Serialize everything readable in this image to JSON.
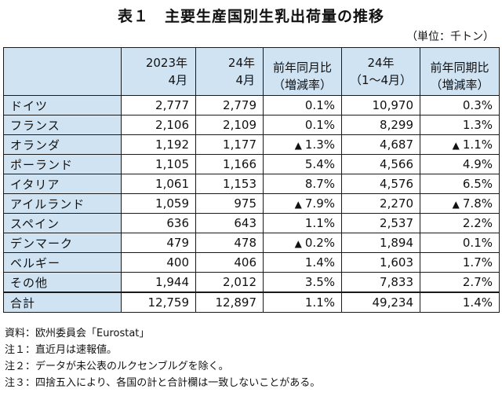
{
  "title": "表１　主要生産国別生乳出荷量の推移",
  "unit": "（単位：千トン）",
  "header": {
    "col1_line1": "2023年",
    "col1_line2": "4月",
    "col2_line1": "24年",
    "col2_line2": "4月",
    "col3_line1": "前年同月比",
    "col3_line2": "（増減率）",
    "col4_line1": "24年",
    "col4_line2": "（1～4月）",
    "col5_line1": "前年同期比",
    "col5_line2": "（増減率）"
  },
  "rows": [
    {
      "country": "ドイツ",
      "y2023": "2,777",
      "y2024": "2,779",
      "yoy_month": "0.1%",
      "yoy_month_neg": false,
      "jan_apr": "10,970",
      "yoy_period": "0.3%",
      "yoy_period_neg": false
    },
    {
      "country": "フランス",
      "y2023": "2,106",
      "y2024": "2,109",
      "yoy_month": "0.1%",
      "yoy_month_neg": false,
      "jan_apr": "8,299",
      "yoy_period": "1.3%",
      "yoy_period_neg": false
    },
    {
      "country": "オランダ",
      "y2023": "1,192",
      "y2024": "1,177",
      "yoy_month": "1.3%",
      "yoy_month_neg": true,
      "jan_apr": "4,687",
      "yoy_period": "1.1%",
      "yoy_period_neg": true
    },
    {
      "country": "ポーランド",
      "y2023": "1,105",
      "y2024": "1,166",
      "yoy_month": "5.4%",
      "yoy_month_neg": false,
      "jan_apr": "4,566",
      "yoy_period": "4.9%",
      "yoy_period_neg": false
    },
    {
      "country": "イタリア",
      "y2023": "1,061",
      "y2024": "1,153",
      "yoy_month": "8.7%",
      "yoy_month_neg": false,
      "jan_apr": "4,576",
      "yoy_period": "6.5%",
      "yoy_period_neg": false
    },
    {
      "country": "アイルランド",
      "y2023": "1,059",
      "y2024": "975",
      "yoy_month": "7.9%",
      "yoy_month_neg": true,
      "jan_apr": "2,270",
      "yoy_period": "7.8%",
      "yoy_period_neg": true
    },
    {
      "country": "スペイン",
      "y2023": "636",
      "y2024": "643",
      "yoy_month": "1.1%",
      "yoy_month_neg": false,
      "jan_apr": "2,537",
      "yoy_period": "2.2%",
      "yoy_period_neg": false
    },
    {
      "country": "デンマーク",
      "y2023": "479",
      "y2024": "478",
      "yoy_month": "0.2%",
      "yoy_month_neg": true,
      "jan_apr": "1,894",
      "yoy_period": "0.1%",
      "yoy_period_neg": false
    },
    {
      "country": "ベルギー",
      "y2023": "400",
      "y2024": "406",
      "yoy_month": "1.4%",
      "yoy_month_neg": false,
      "jan_apr": "1,603",
      "yoy_period": "1.7%",
      "yoy_period_neg": false
    },
    {
      "country": "その他",
      "y2023": "1,944",
      "y2024": "2,012",
      "yoy_month": "3.5%",
      "yoy_month_neg": false,
      "jan_apr": "7,833",
      "yoy_period": "2.7%",
      "yoy_period_neg": false
    }
  ],
  "total": {
    "country": "合計",
    "y2023": "12,759",
    "y2024": "12,897",
    "yoy_month": "1.1%",
    "jan_apr": "49,234",
    "yoy_period": "1.4%"
  },
  "negative_marker": "▲",
  "notes": [
    "資料：欧州委員会「Eurostat」",
    "注１：直近月は速報値。",
    "注２：データが未公表のルクセンブルグを除く。",
    "注３：四捨五入により、各国の計と合計欄は一致しないことがある。"
  ]
}
